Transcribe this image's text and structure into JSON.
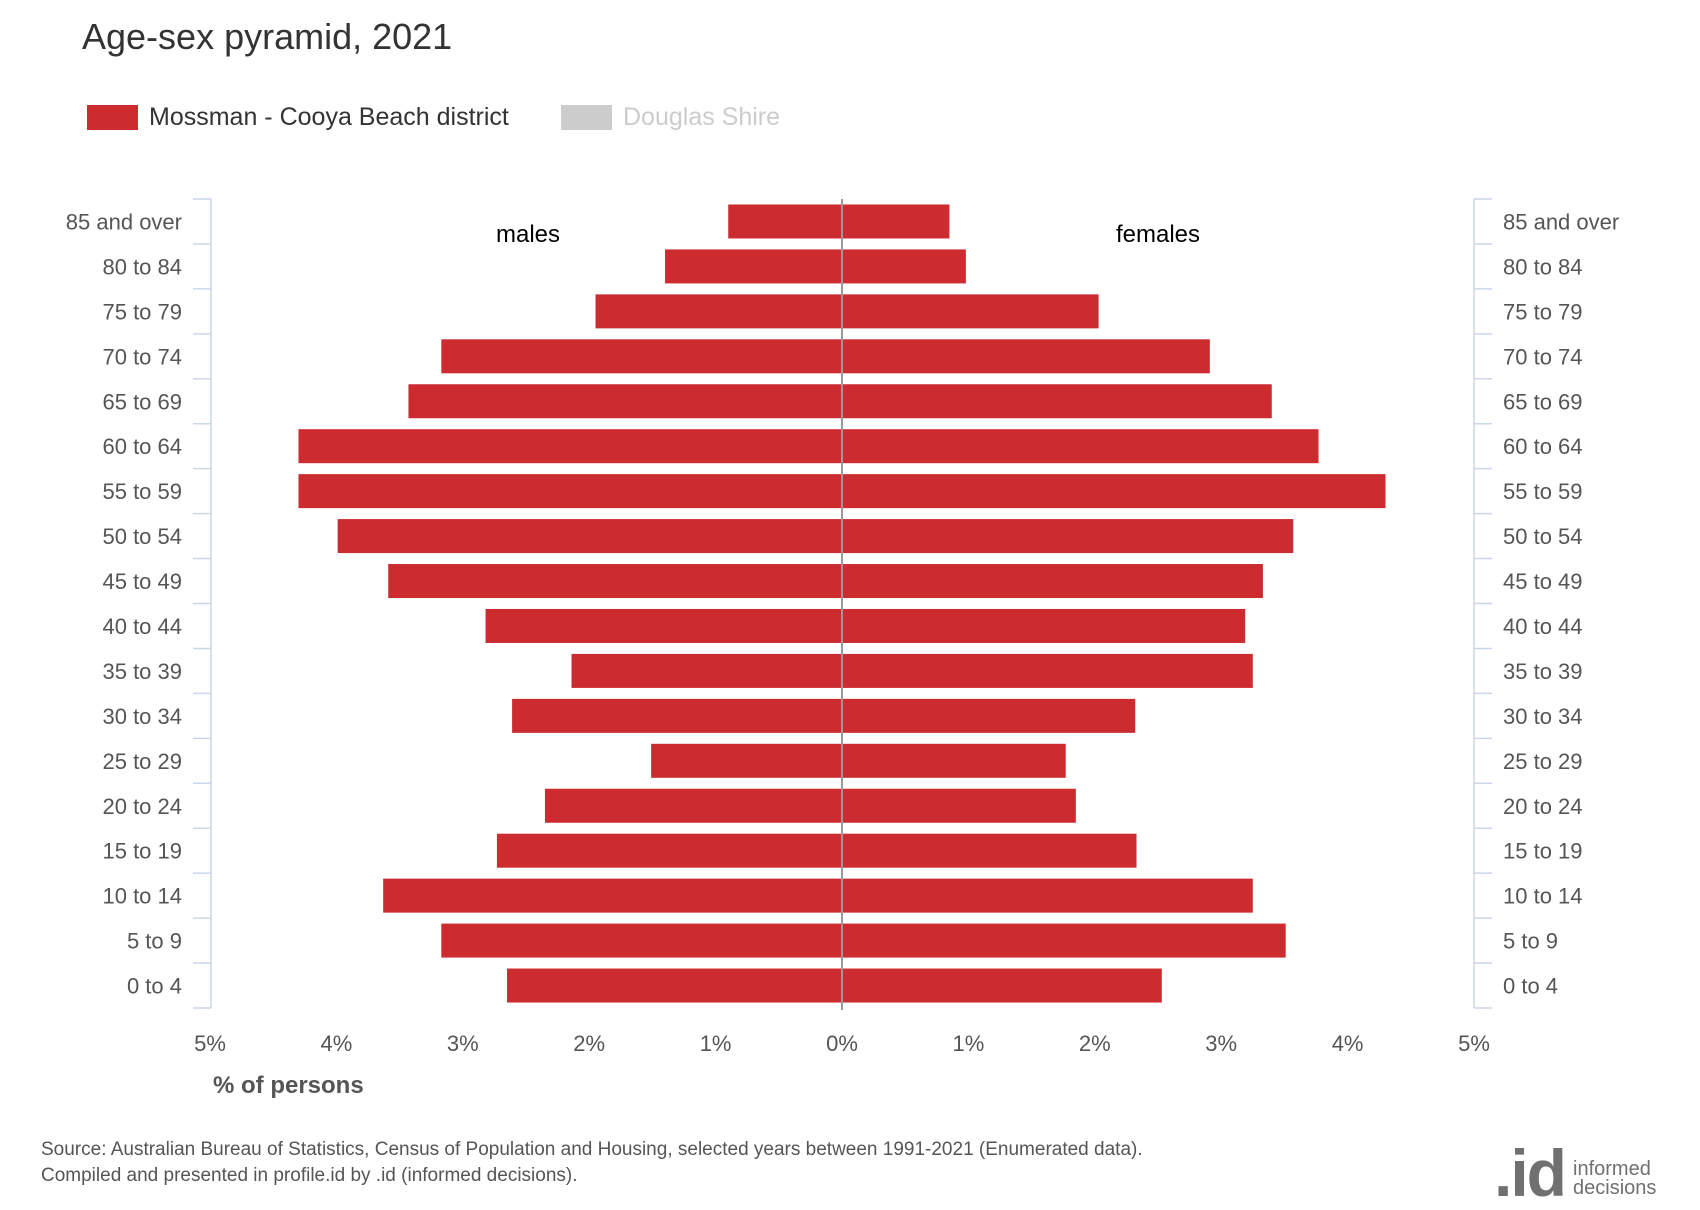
{
  "chart_data": {
    "type": "bar",
    "orientation": "horizontal-pyramid",
    "title": "Age-sex pyramid, 2021",
    "categories": [
      "85 and over",
      "80 to 84",
      "75 to 79",
      "70 to 74",
      "65 to 69",
      "60 to 64",
      "55 to 59",
      "50 to 54",
      "45 to 49",
      "40 to 44",
      "35 to 39",
      "30 to 34",
      "25 to 29",
      "20 to 24",
      "15 to 19",
      "10 to 14",
      "5 to 9",
      "0 to 4"
    ],
    "series": [
      {
        "name": "Mossman - Cooya Beach district",
        "color": "#cc2b30",
        "males": [
          0.9,
          1.4,
          1.95,
          3.17,
          3.43,
          4.3,
          4.3,
          3.99,
          3.59,
          2.82,
          2.14,
          2.61,
          1.51,
          2.35,
          2.73,
          3.63,
          3.17,
          2.65
        ],
        "females": [
          0.85,
          0.98,
          2.03,
          2.91,
          3.4,
          3.77,
          4.3,
          3.57,
          3.33,
          3.19,
          3.25,
          2.32,
          1.77,
          1.85,
          2.33,
          3.25,
          3.51,
          2.53
        ]
      },
      {
        "name": "Douglas Shire",
        "color": "#cccccc",
        "visible": false
      }
    ],
    "side_labels": {
      "left": "males",
      "right": "females"
    },
    "xticks": [
      "5%",
      "4%",
      "3%",
      "2%",
      "1%",
      "0%",
      "1%",
      "2%",
      "3%",
      "4%",
      "5%"
    ],
    "xlim": [
      -5,
      5
    ],
    "xlabel": "% of persons",
    "legend": "top-left",
    "grid": false
  },
  "source": {
    "line1": "Source: Australian Bureau of Statistics, Census of Population and Housing, selected years between 1991-2021 (Enumerated data).",
    "line2": "Compiled and presented in profile.id by .id (informed decisions)."
  },
  "logo": {
    "mark": ".id",
    "line1": "informed",
    "line2": "decisions"
  }
}
